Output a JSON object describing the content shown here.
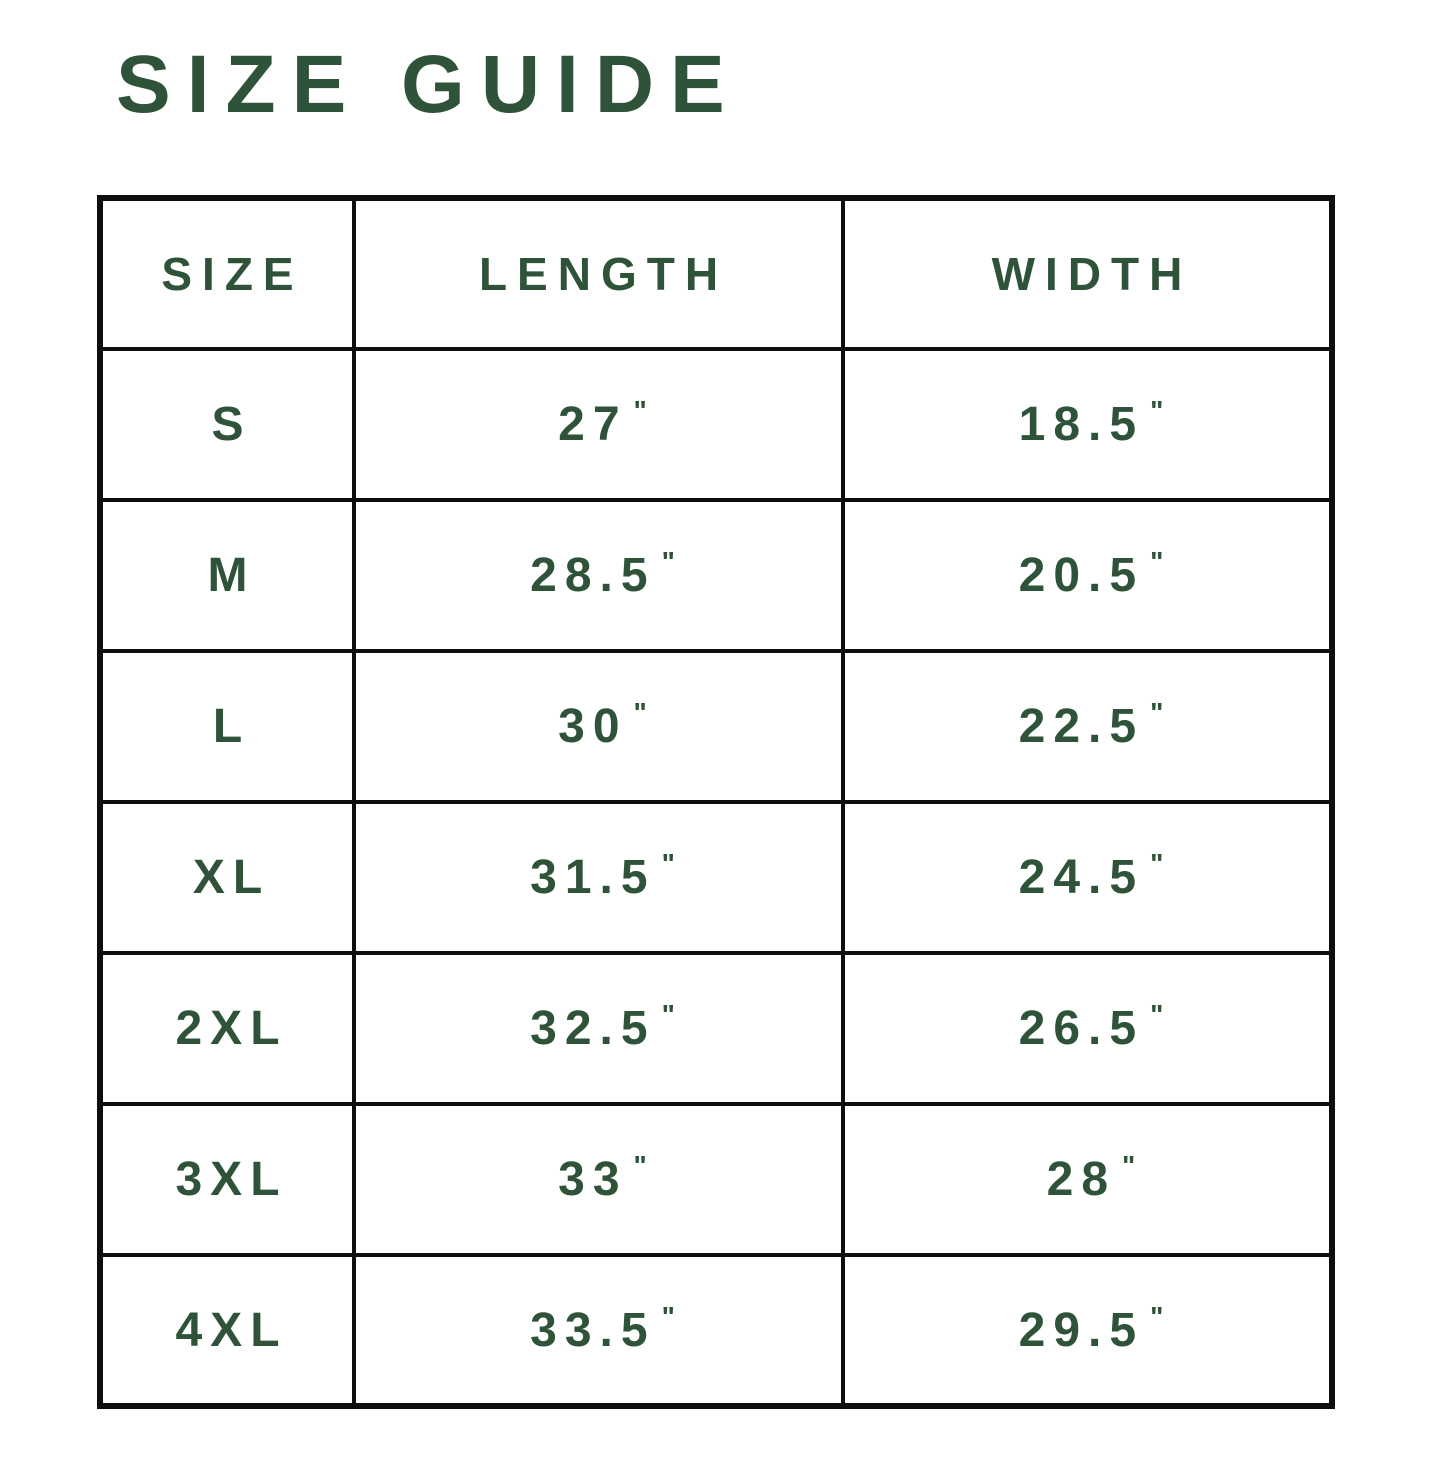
{
  "title": "SIZE GUIDE",
  "colors": {
    "text_green": "#2F5339",
    "border_black": "#0E0E0E",
    "background": "#FFFFFF"
  },
  "table": {
    "headers": [
      "SIZE",
      "LENGTH",
      "WIDTH"
    ],
    "unit": "\"",
    "rows": [
      {
        "size": "S",
        "length": "27",
        "width": "18.5"
      },
      {
        "size": "M",
        "length": "28.5",
        "width": "20.5"
      },
      {
        "size": "L",
        "length": "30",
        "width": "22.5"
      },
      {
        "size": "XL",
        "length": "31.5",
        "width": "24.5"
      },
      {
        "size": "2XL",
        "length": "32.5",
        "width": "26.5"
      },
      {
        "size": "3XL",
        "length": "33",
        "width": "28"
      },
      {
        "size": "4XL",
        "length": "33.5",
        "width": "29.5"
      }
    ]
  }
}
